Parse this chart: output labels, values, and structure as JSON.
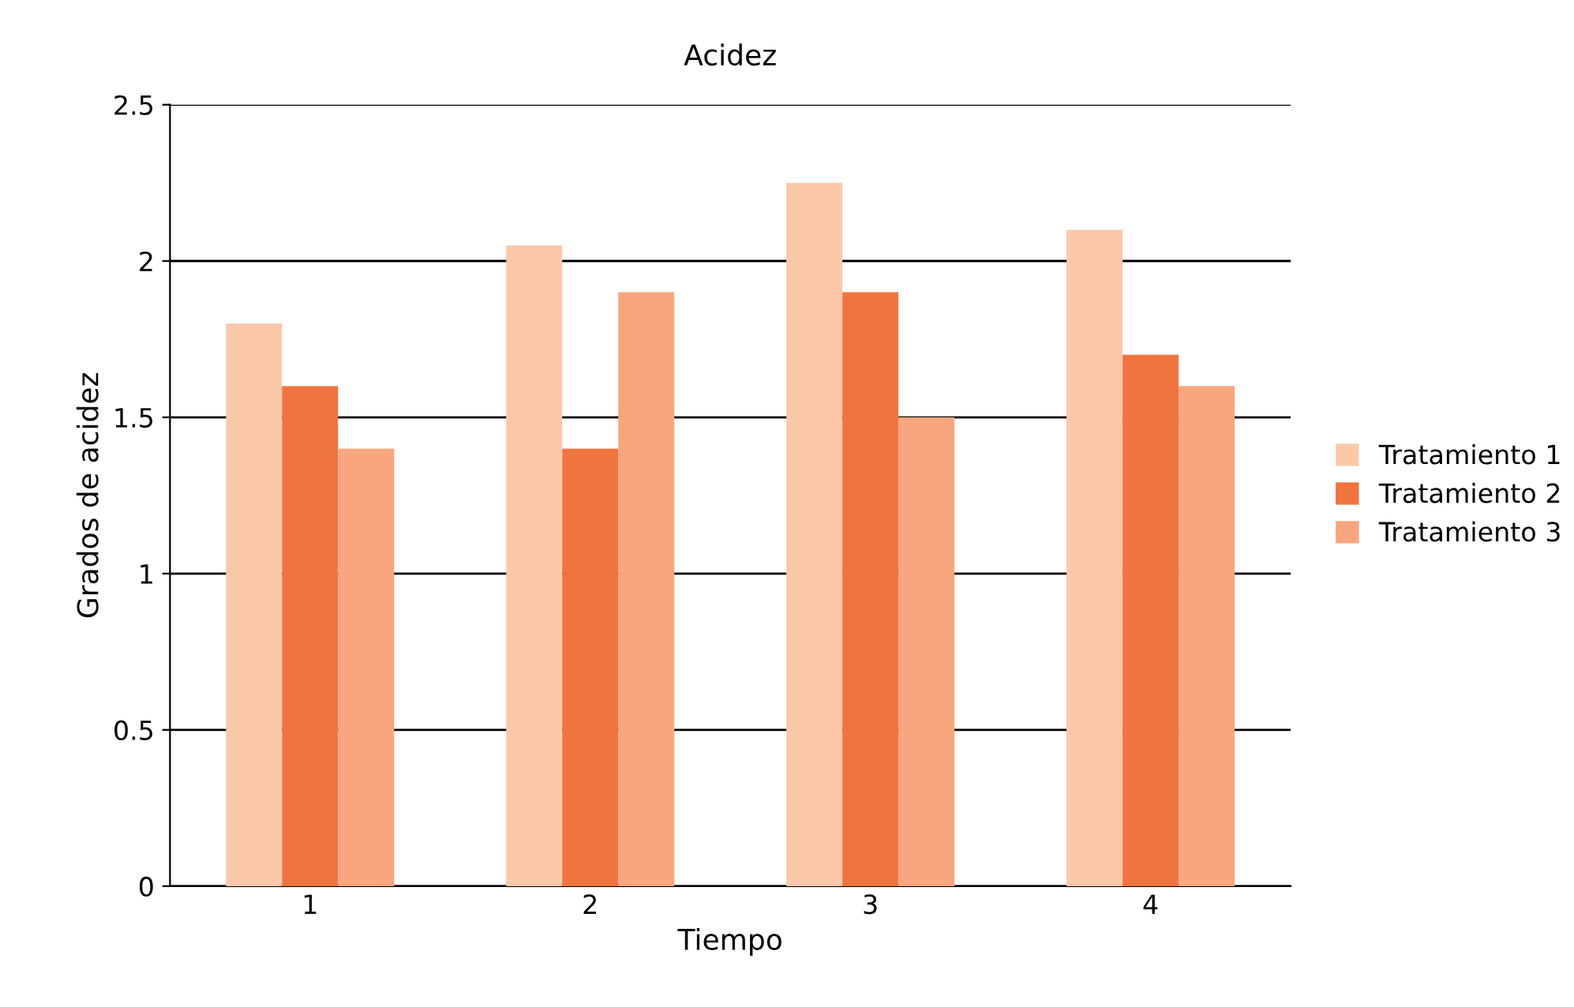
{
  "chart_data": {
    "type": "bar",
    "title": "Acidez",
    "xlabel": "Tiempo",
    "ylabel": "Grados de acidez",
    "categories": [
      "1",
      "2",
      "3",
      "4"
    ],
    "series": [
      {
        "name": "Tratamiento 1",
        "color": "#fbc8aa",
        "values": [
          1.8,
          2.05,
          2.25,
          2.1
        ]
      },
      {
        "name": "Tratamiento 2",
        "color": "#f07440",
        "values": [
          1.6,
          1.4,
          1.9,
          1.7
        ]
      },
      {
        "name": "Tratamiento 3",
        "color": "#f8a67e",
        "values": [
          1.4,
          1.9,
          1.5,
          1.6
        ]
      }
    ],
    "ylim": [
      0,
      2.5
    ],
    "yticks": [
      0,
      0.5,
      1,
      1.5,
      2,
      2.5
    ],
    "grid": "y",
    "legend": "right"
  }
}
